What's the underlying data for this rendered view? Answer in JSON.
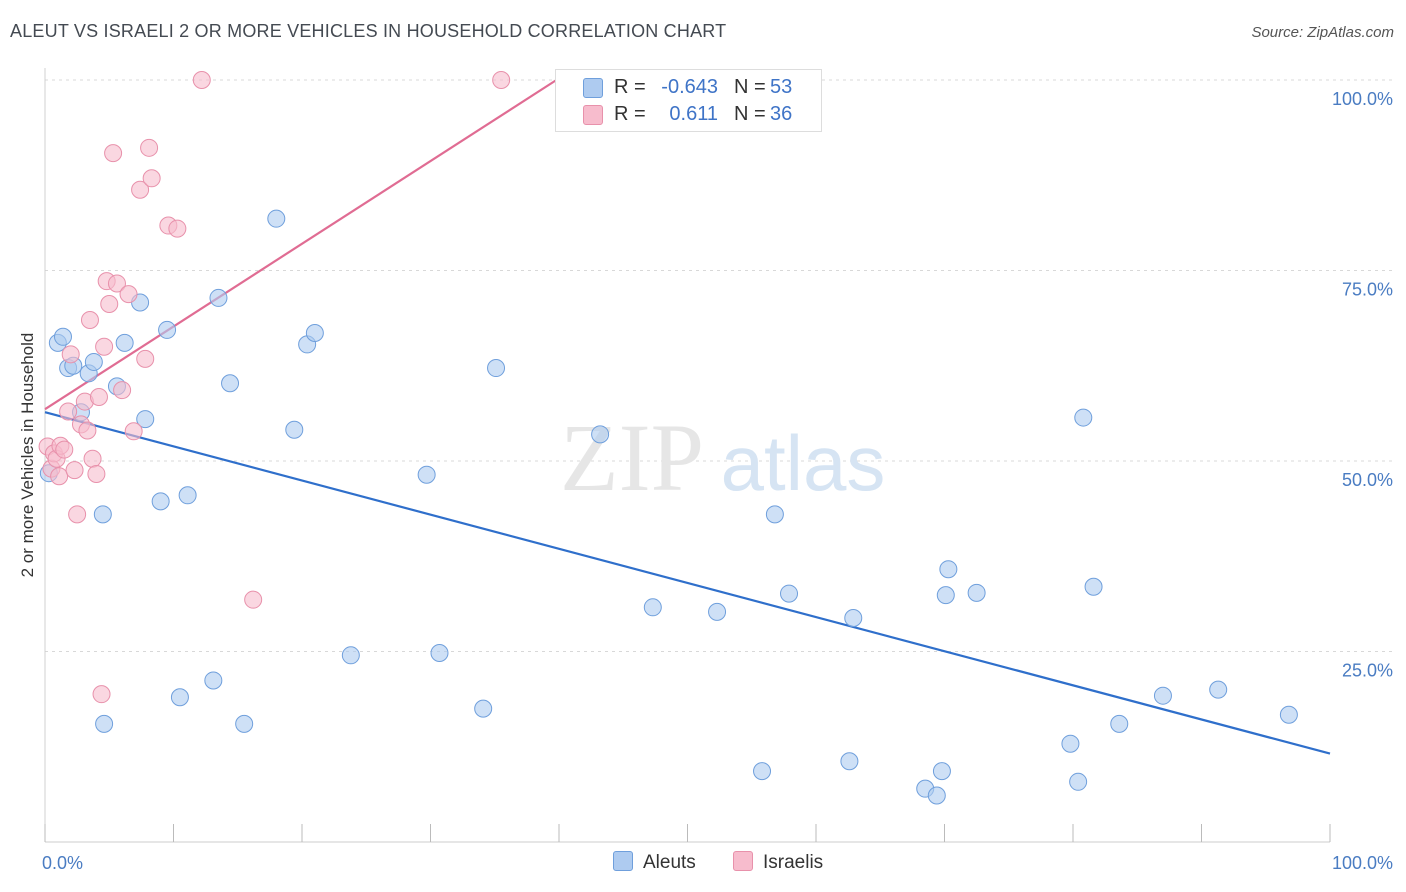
{
  "header": {
    "title": "ALEUT VS ISRAELI 2 OR MORE VEHICLES IN HOUSEHOLD CORRELATION CHART",
    "source": "Source: ZipAtlas.com"
  },
  "legend": {
    "rows": [
      {
        "r_label": "R =",
        "r_value": "-0.643",
        "n_label": "N =",
        "n_value": "53"
      },
      {
        "r_label": "R =",
        "r_value": "0.611",
        "n_label": "N =",
        "n_value": "36"
      }
    ],
    "bottom": [
      "Aleuts",
      "Israelis"
    ]
  },
  "watermark": {
    "zip": "ZIP",
    "atlas": "atlas"
  },
  "colors": {
    "aleuts_fill": "#aecbf0",
    "aleuts_stroke": "#6f9fdc",
    "aleuts_line": "#2f6fcb",
    "israelis_fill": "#f7bccd",
    "israelis_stroke": "#e891ab",
    "israelis_line": "#e06c93",
    "tick_label": "#4a7cc2",
    "grid": "#d8d8d8"
  },
  "chart_data": {
    "type": "scatter",
    "title": "ALEUT VS ISRAELI 2 OR MORE VEHICLES IN HOUSEHOLD CORRELATION CHART",
    "xlabel": "",
    "ylabel": "2 or more Vehicles in Household",
    "xlim": [
      0,
      100
    ],
    "ylim": [
      0,
      105
    ],
    "x_tick_labels": [
      "0.0%",
      "100.0%"
    ],
    "y_ticks": [
      25,
      50,
      75,
      100
    ],
    "y_tick_labels": [
      "25.0%",
      "50.0%",
      "75.0%",
      "100.0%"
    ],
    "grid": true,
    "legend_position": "top-center",
    "series": [
      {
        "name": "Aleuts",
        "stats": {
          "R": -0.643,
          "N": 53
        },
        "points": [
          [
            0.3,
            48.4
          ],
          [
            1.0,
            65.5
          ],
          [
            1.4,
            66.3
          ],
          [
            1.8,
            62.2
          ],
          [
            2.2,
            62.5
          ],
          [
            2.8,
            56.4
          ],
          [
            3.4,
            61.5
          ],
          [
            3.8,
            63.0
          ],
          [
            4.5,
            43.0
          ],
          [
            4.6,
            15.5
          ],
          [
            5.6,
            59.8
          ],
          [
            6.2,
            65.5
          ],
          [
            7.4,
            70.8
          ],
          [
            7.8,
            55.5
          ],
          [
            9.0,
            44.7
          ],
          [
            9.5,
            67.2
          ],
          [
            10.5,
            19.0
          ],
          [
            11.1,
            45.5
          ],
          [
            13.1,
            21.2
          ],
          [
            13.5,
            71.4
          ],
          [
            14.4,
            60.2
          ],
          [
            15.5,
            15.5
          ],
          [
            18.0,
            81.8
          ],
          [
            19.4,
            54.1
          ],
          [
            20.4,
            65.3
          ],
          [
            21.0,
            66.8
          ],
          [
            23.8,
            24.5
          ],
          [
            29.7,
            48.2
          ],
          [
            30.7,
            24.8
          ],
          [
            34.1,
            17.5
          ],
          [
            35.1,
            62.2
          ],
          [
            43.2,
            53.5
          ],
          [
            47.3,
            30.8
          ],
          [
            52.3,
            30.2
          ],
          [
            55.8,
            9.3
          ],
          [
            56.8,
            43.0
          ],
          [
            57.9,
            32.6
          ],
          [
            62.6,
            10.6
          ],
          [
            62.9,
            29.4
          ],
          [
            68.5,
            7.0
          ],
          [
            69.4,
            6.1
          ],
          [
            69.8,
            9.3
          ],
          [
            70.1,
            32.4
          ],
          [
            70.3,
            35.8
          ],
          [
            72.5,
            32.7
          ],
          [
            79.8,
            12.9
          ],
          [
            80.4,
            7.9
          ],
          [
            80.8,
            55.7
          ],
          [
            81.6,
            33.5
          ],
          [
            83.6,
            15.5
          ],
          [
            87.0,
            19.2
          ],
          [
            91.3,
            20.0
          ],
          [
            96.8,
            16.7
          ]
        ],
        "trend": {
          "x0": 0,
          "y0": 56.4,
          "x1": 100,
          "y1": 11.6
        }
      },
      {
        "name": "Israelis",
        "stats": {
          "R": 0.611,
          "N": 36
        },
        "points": [
          [
            0.2,
            51.9
          ],
          [
            0.5,
            49.0
          ],
          [
            0.7,
            51.0
          ],
          [
            0.9,
            50.3
          ],
          [
            1.1,
            48.0
          ],
          [
            1.2,
            52.0
          ],
          [
            1.5,
            51.5
          ],
          [
            1.8,
            56.5
          ],
          [
            2.0,
            64.0
          ],
          [
            2.3,
            48.8
          ],
          [
            2.5,
            43.0
          ],
          [
            2.8,
            54.8
          ],
          [
            3.1,
            57.8
          ],
          [
            3.3,
            54.0
          ],
          [
            3.5,
            68.5
          ],
          [
            3.7,
            50.3
          ],
          [
            4.0,
            48.3
          ],
          [
            4.2,
            58.4
          ],
          [
            4.4,
            19.4
          ],
          [
            4.6,
            65.0
          ],
          [
            4.8,
            73.6
          ],
          [
            5.0,
            70.6
          ],
          [
            5.3,
            90.4
          ],
          [
            5.6,
            73.3
          ],
          [
            6.0,
            59.3
          ],
          [
            6.5,
            71.9
          ],
          [
            6.9,
            53.9
          ],
          [
            7.4,
            85.6
          ],
          [
            7.8,
            63.4
          ],
          [
            8.1,
            91.1
          ],
          [
            8.3,
            87.1
          ],
          [
            9.6,
            80.9
          ],
          [
            10.3,
            80.5
          ],
          [
            12.2,
            100.0
          ],
          [
            16.2,
            31.8
          ],
          [
            35.5,
            100.0
          ]
        ],
        "trend": {
          "x0": 0,
          "y0": 56.8,
          "x1": 39.8,
          "y1": 100.0
        }
      }
    ]
  }
}
